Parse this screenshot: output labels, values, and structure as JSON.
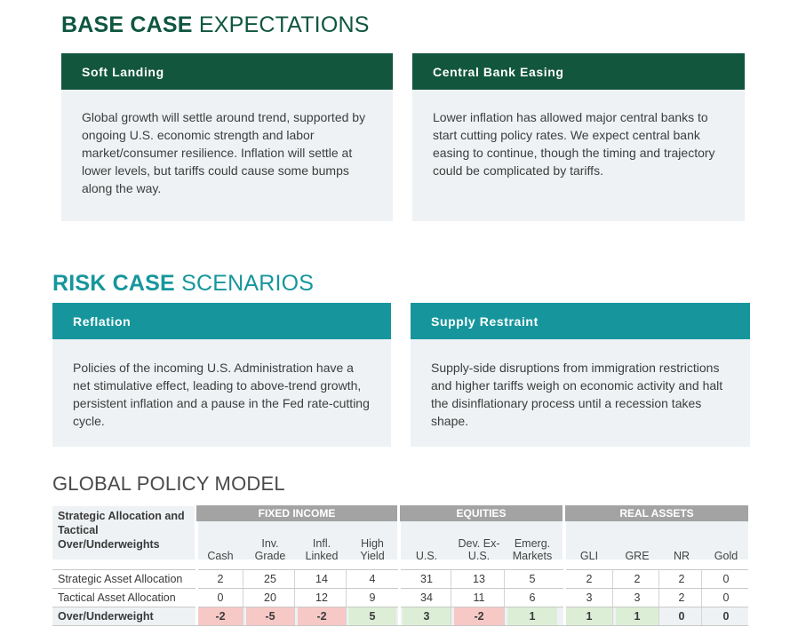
{
  "base_case": {
    "title_bold": "BASE CASE",
    "title_rest": " EXPECTATIONS",
    "cards": [
      {
        "heading": "Soft Landing",
        "body": "Global growth will settle around trend, supported by ongoing U.S. economic strength and labor market/consumer resilience. Inflation will settle at lower levels, but tariffs could cause some bumps along the way."
      },
      {
        "heading": "Central Bank Easing",
        "body": "Lower inflation has allowed major central banks to start cutting policy rates. We expect central bank easing to continue, though the timing and trajectory could be complicated by tariffs."
      }
    ]
  },
  "risk_case": {
    "title_bold": "RISK CASE",
    "title_rest": " SCENARIOS",
    "cards": [
      {
        "heading": "Reflation",
        "body": "Policies of the incoming U.S. Administration have a net stimulative effect, leading to above-trend growth, persistent inflation and a pause in the Fed rate-cutting cycle."
      },
      {
        "heading": "Supply Restraint",
        "body": "Supply-side disruptions from immigration restrictions and higher tariffs weigh on economic activity and halt the disinflationary process until a recession takes shape."
      }
    ]
  },
  "policy_model": {
    "title": "GLOBAL POLICY MODEL",
    "row_header": "Strategic Allocation and Tactical Over/Underweights",
    "groups": [
      "FIXED INCOME",
      "EQUITIES",
      "REAL ASSETS"
    ],
    "columns": [
      "Cash",
      "Inv. Grade",
      "Infl. Linked",
      "High Yield",
      "U.S.",
      "Dev. Ex-U.S.",
      "Emerg. Markets",
      "GLI",
      "GRE",
      "NR",
      "Gold"
    ],
    "rows": [
      {
        "label": "Strategic Asset Allocation",
        "values": [
          "2",
          "25",
          "14",
          "4",
          "31",
          "13",
          "5",
          "2",
          "2",
          "2",
          "0"
        ]
      },
      {
        "label": "Tactical Asset Allocation",
        "values": [
          "0",
          "20",
          "12",
          "9",
          "34",
          "11",
          "6",
          "3",
          "3",
          "2",
          "0"
        ]
      },
      {
        "label": "Over/Underweight",
        "values": [
          "-2",
          "-5",
          "-2",
          "5",
          "3",
          "-2",
          "1",
          "1",
          "1",
          "0",
          "0"
        ]
      }
    ],
    "colors": {
      "negative": "#f6c9c6",
      "positive": "#dcefd6",
      "neutral": "#eef2f4"
    }
  }
}
